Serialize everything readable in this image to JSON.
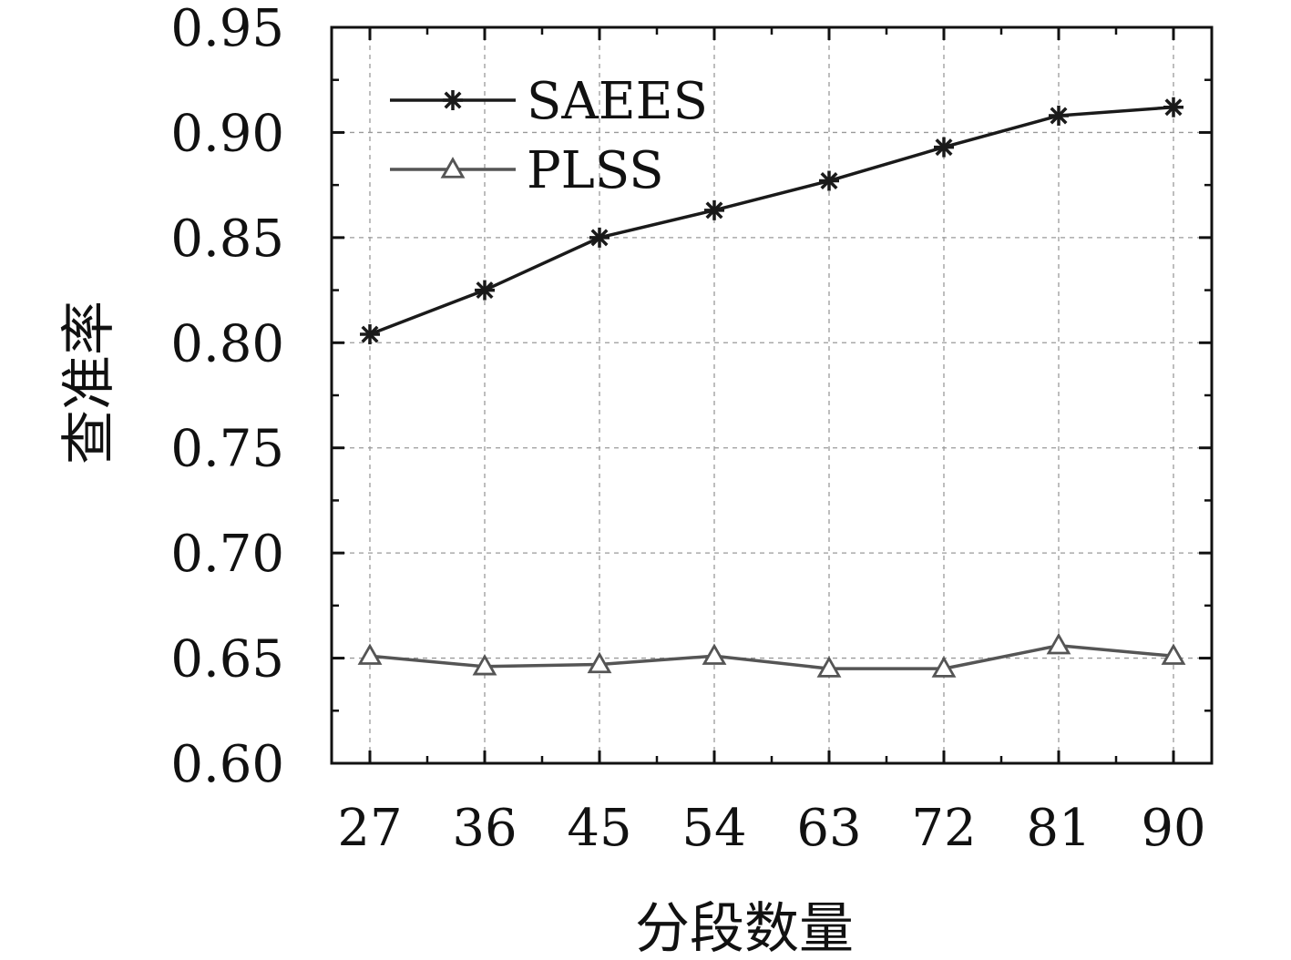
{
  "chart_data": {
    "type": "line",
    "title": "",
    "xlabel": "分段数量",
    "ylabel": "查准率",
    "x": [
      27,
      36,
      45,
      54,
      63,
      72,
      81,
      90
    ],
    "x_tick_labels": [
      "27",
      "36",
      "45",
      "54",
      "63",
      "72",
      "81",
      "90"
    ],
    "ylim": [
      0.6,
      0.95
    ],
    "y_ticks": [
      0.6,
      0.65,
      0.7,
      0.75,
      0.8,
      0.85,
      0.9,
      0.95
    ],
    "y_tick_labels": [
      "0.60",
      "0.65",
      "0.70",
      "0.75",
      "0.80",
      "0.85",
      "0.90",
      "0.95"
    ],
    "grid": true,
    "legend_position": "top-left",
    "series": [
      {
        "name": "SAEES",
        "marker": "asterisk",
        "color": "#1a1a1a",
        "values": [
          0.804,
          0.825,
          0.85,
          0.863,
          0.877,
          0.893,
          0.908,
          0.912
        ]
      },
      {
        "name": "PLSS",
        "marker": "triangle",
        "color": "#555555",
        "values": [
          0.651,
          0.646,
          0.647,
          0.651,
          0.645,
          0.645,
          0.656,
          0.651
        ]
      }
    ]
  }
}
